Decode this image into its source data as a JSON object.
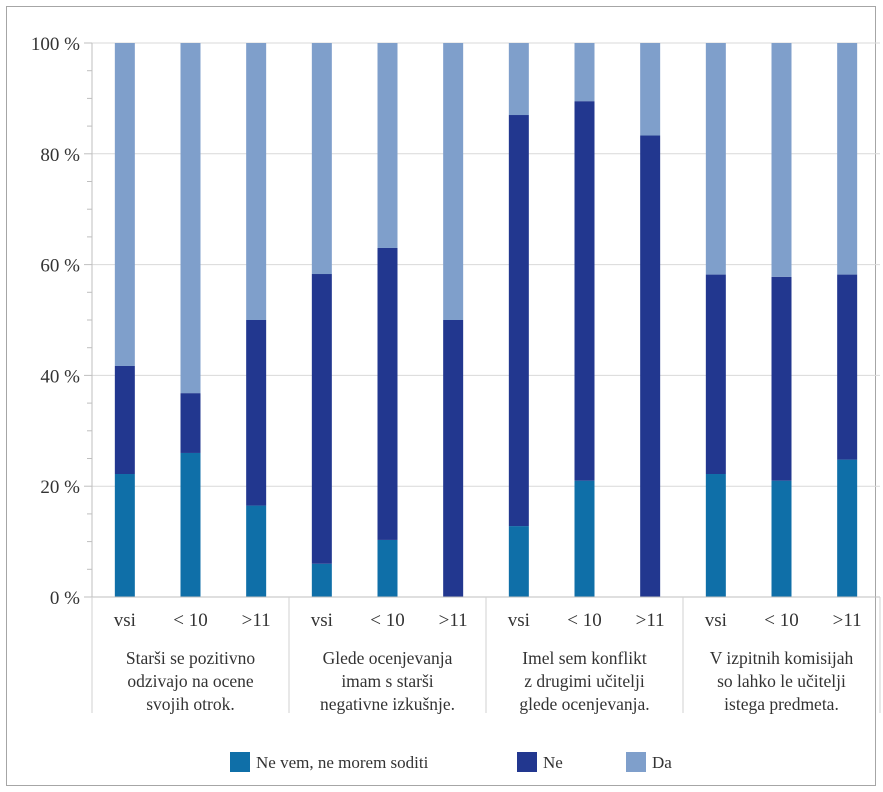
{
  "chart_data": {
    "type": "bar",
    "stacked": true,
    "normalized": true,
    "ylim": [
      0,
      100
    ],
    "yticks": [
      "0 %",
      "20 %",
      "40 %",
      "60 %",
      "80 %",
      "100 %"
    ],
    "grid": true,
    "legend_position": "bottom",
    "groups": [
      {
        "label_lines": [
          "Starši se pozitivno",
          "odzivajo na ocene",
          "svojih otrok."
        ],
        "categories": [
          "vsi",
          "< 10",
          ">11"
        ]
      },
      {
        "label_lines": [
          "Glede ocenjevanja",
          "imam s starši",
          "negativne izkušnje."
        ],
        "categories": [
          "vsi",
          "< 10",
          ">11"
        ]
      },
      {
        "label_lines": [
          "Imel sem konflikt",
          "z drugimi učitelji",
          "glede ocenjevanja."
        ],
        "categories": [
          "vsi",
          "< 10",
          ">11"
        ]
      },
      {
        "label_lines": [
          "V izpitnih komisijah",
          "so lahko le učitelji",
          "istega predmeta."
        ],
        "categories": [
          "vsi",
          "< 10",
          ">11"
        ]
      }
    ],
    "series": [
      {
        "name": "Ne vem, ne morem soditi",
        "color": "#0f6fa8",
        "values": [
          22.2,
          26,
          16.5,
          6,
          10.3,
          0,
          12.8,
          21,
          0,
          22.2,
          21,
          24.8
        ]
      },
      {
        "name": "Ne",
        "color": "#22378f",
        "values": [
          19.5,
          10.8,
          33.5,
          52.3,
          52.7,
          50,
          74.2,
          68.5,
          83.3,
          36,
          36.8,
          33.4
        ]
      },
      {
        "name": "Da",
        "color": "#7f9fcb",
        "values": [
          58.3,
          63.2,
          50,
          41.7,
          37,
          50,
          13,
          10.5,
          16.7,
          41.8,
          42.2,
          41.8
        ]
      }
    ]
  }
}
